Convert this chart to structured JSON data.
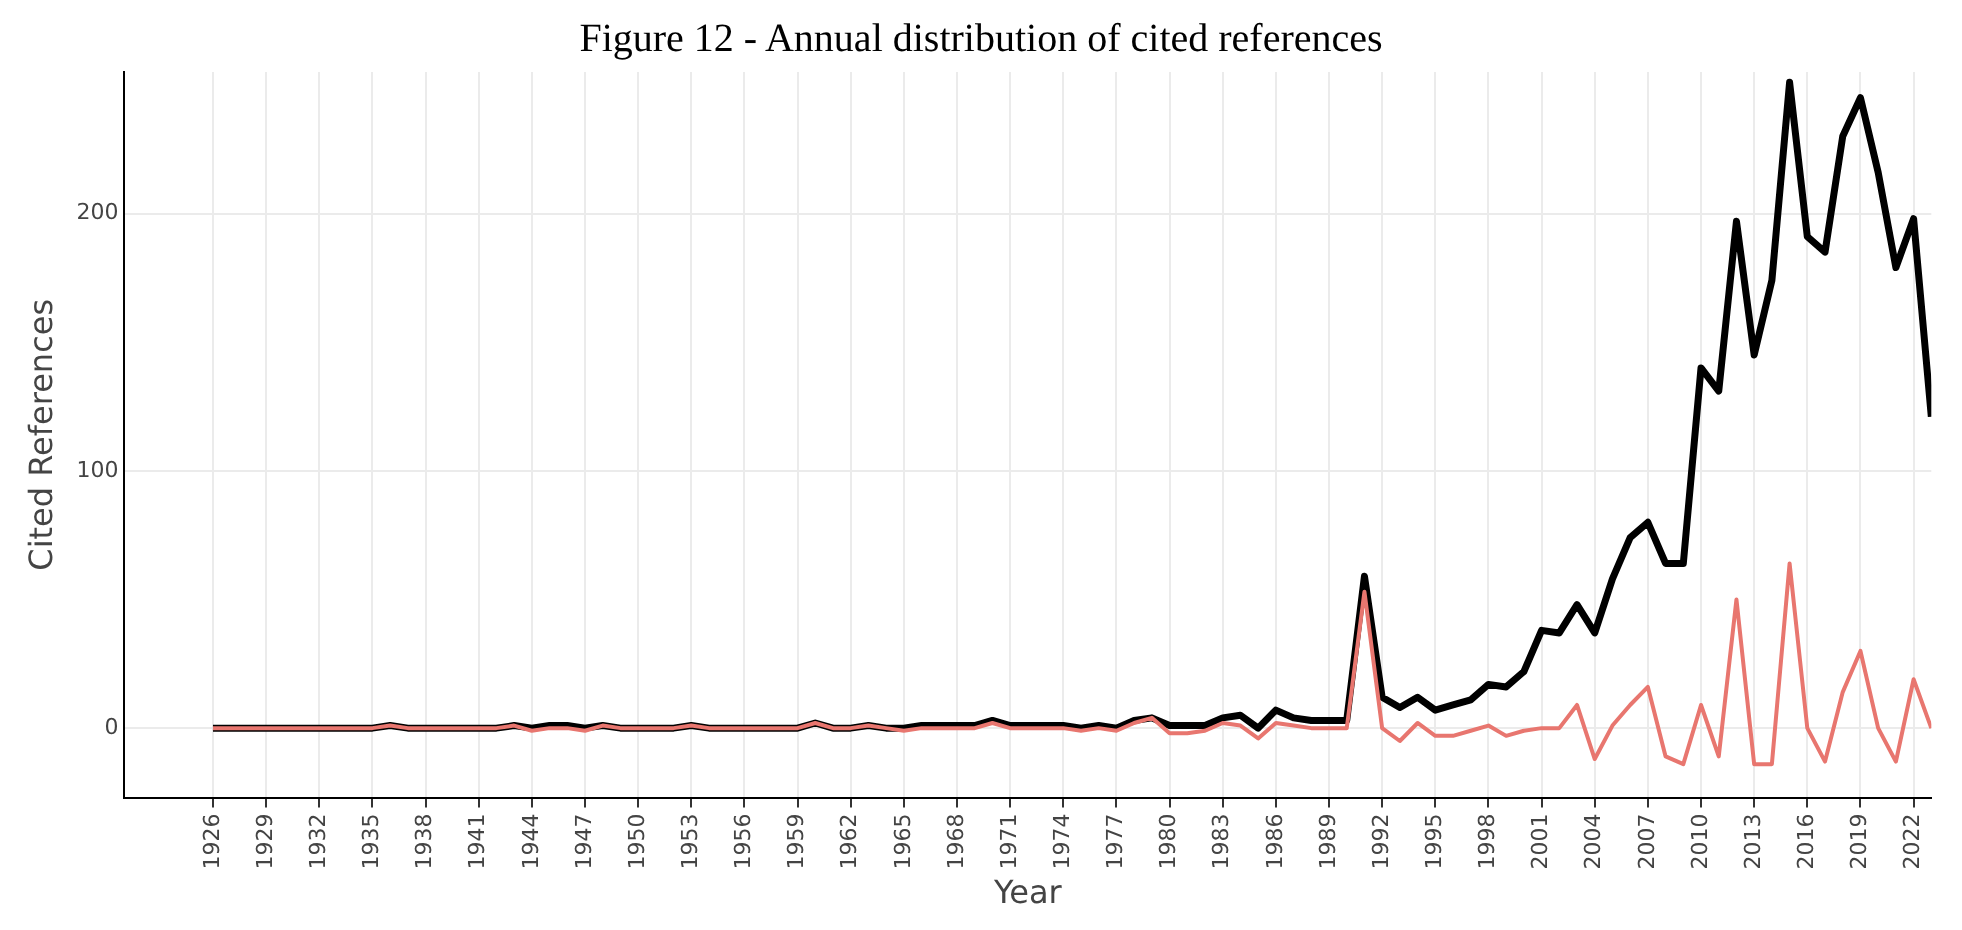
{
  "chart_data": {
    "type": "line",
    "title": "Figure 12 - Annual distribution of cited references",
    "xlabel": "Year",
    "ylabel": "Cited References",
    "x": [
      1926,
      1927,
      1928,
      1929,
      1930,
      1931,
      1932,
      1933,
      1934,
      1935,
      1936,
      1937,
      1938,
      1939,
      1940,
      1941,
      1942,
      1943,
      1944,
      1945,
      1946,
      1947,
      1948,
      1949,
      1950,
      1951,
      1952,
      1953,
      1954,
      1955,
      1956,
      1957,
      1958,
      1959,
      1960,
      1961,
      1962,
      1963,
      1964,
      1965,
      1966,
      1967,
      1968,
      1969,
      1970,
      1971,
      1972,
      1973,
      1974,
      1975,
      1976,
      1977,
      1978,
      1979,
      1980,
      1981,
      1982,
      1983,
      1984,
      1985,
      1986,
      1987,
      1988,
      1989,
      1990,
      1991,
      1992,
      1993,
      1994,
      1995,
      1996,
      1997,
      1998,
      1999,
      2000,
      2001,
      2002,
      2003,
      2004,
      2005,
      2006,
      2007,
      2008,
      2009,
      2010,
      2011,
      2012,
      2013,
      2014,
      2015,
      2016,
      2017,
      2018,
      2019,
      2020,
      2021,
      2022,
      2023
    ],
    "series": [
      {
        "color": "#000000",
        "values": [
          0,
          0,
          0,
          0,
          0,
          0,
          0,
          0,
          0,
          0,
          1,
          0,
          0,
          0,
          0,
          0,
          0,
          1,
          0,
          1,
          1,
          0,
          1,
          0,
          0,
          0,
          0,
          1,
          0,
          0,
          0,
          0,
          0,
          0,
          2,
          0,
          0,
          1,
          0,
          0,
          1,
          1,
          1,
          1,
          3,
          1,
          1,
          1,
          1,
          0,
          1,
          0,
          3,
          4,
          1,
          1,
          1,
          4,
          5,
          0,
          7,
          4,
          3,
          3,
          3,
          59,
          12,
          8,
          12,
          7,
          9,
          11,
          17,
          16,
          22,
          38,
          37,
          48,
          37,
          58,
          74,
          80,
          64,
          64,
          140,
          131,
          197,
          145,
          174,
          251,
          191,
          185,
          230,
          245,
          216,
          179,
          198,
          121
        ]
      },
      {
        "color": "#e8766f",
        "values": [
          0,
          0,
          0,
          0,
          0,
          0,
          0,
          0,
          0,
          0,
          1,
          0,
          0,
          0,
          0,
          0,
          0,
          1,
          -1,
          0,
          0,
          -1,
          1,
          0,
          0,
          0,
          0,
          1,
          0,
          0,
          0,
          0,
          0,
          0,
          2,
          0,
          0,
          1,
          0,
          -1,
          0,
          0,
          0,
          0,
          2,
          0,
          0,
          0,
          0,
          -1,
          0,
          -1,
          2,
          4,
          -2,
          -2,
          -1,
          2,
          1,
          -4,
          2,
          1,
          0,
          0,
          0,
          53,
          0,
          -5,
          2,
          -3,
          -3,
          -1,
          1,
          -3,
          -1,
          0,
          0,
          9,
          -12,
          1,
          9,
          16,
          -11,
          -14,
          9,
          -11,
          50,
          -14,
          -14,
          64,
          0,
          -13,
          14,
          30,
          0,
          -13,
          19,
          0
        ]
      }
    ],
    "xlim": [
      1921,
      2023
    ],
    "xticks": [
      1926,
      1929,
      1932,
      1935,
      1938,
      1941,
      1944,
      1947,
      1950,
      1953,
      1956,
      1959,
      1962,
      1965,
      1968,
      1971,
      1974,
      1977,
      1980,
      1983,
      1986,
      1989,
      1992,
      1995,
      1998,
      2001,
      2004,
      2007,
      2010,
      2013,
      2016,
      2019,
      2022
    ],
    "ylim": [
      -27,
      255
    ],
    "yticks": [
      0,
      100,
      200
    ],
    "grid": true,
    "legend": false,
    "marker": "none",
    "line_style": "solid"
  }
}
